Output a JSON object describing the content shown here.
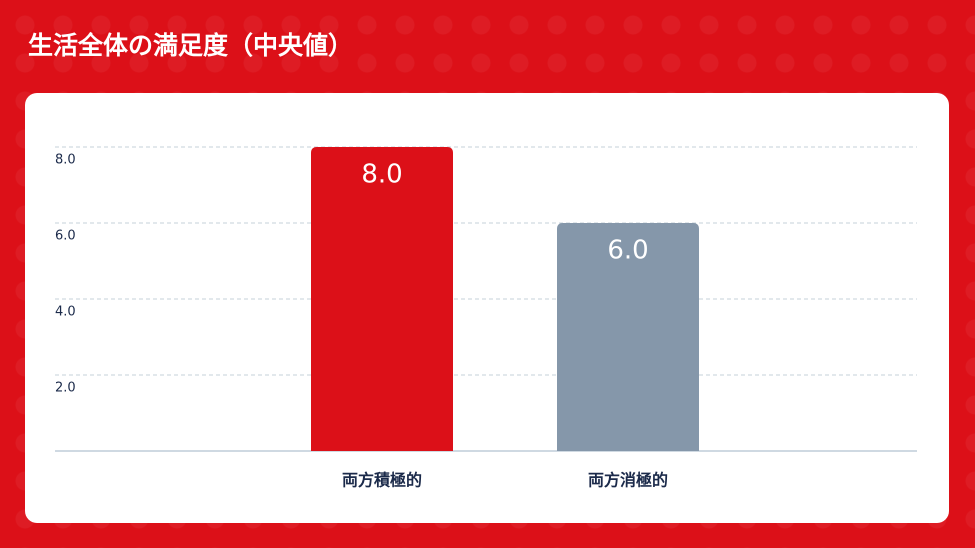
{
  "chart_data": {
    "type": "bar",
    "title": "生活全体の満足度（中央値）",
    "categories": [
      "両方積極的",
      "両方消極的"
    ],
    "values": [
      8.0,
      6.0
    ],
    "value_labels": [
      "8.0",
      "6.0"
    ],
    "colors": [
      "#dc1018",
      "#8597aa"
    ],
    "ylim": [
      0,
      8
    ],
    "yticks": [
      {
        "value": 2,
        "label": "2.0"
      },
      {
        "value": 4,
        "label": "4.0"
      },
      {
        "value": 6,
        "label": "6.0"
      },
      {
        "value": 8,
        "label": "8.0"
      }
    ],
    "grid": true
  }
}
